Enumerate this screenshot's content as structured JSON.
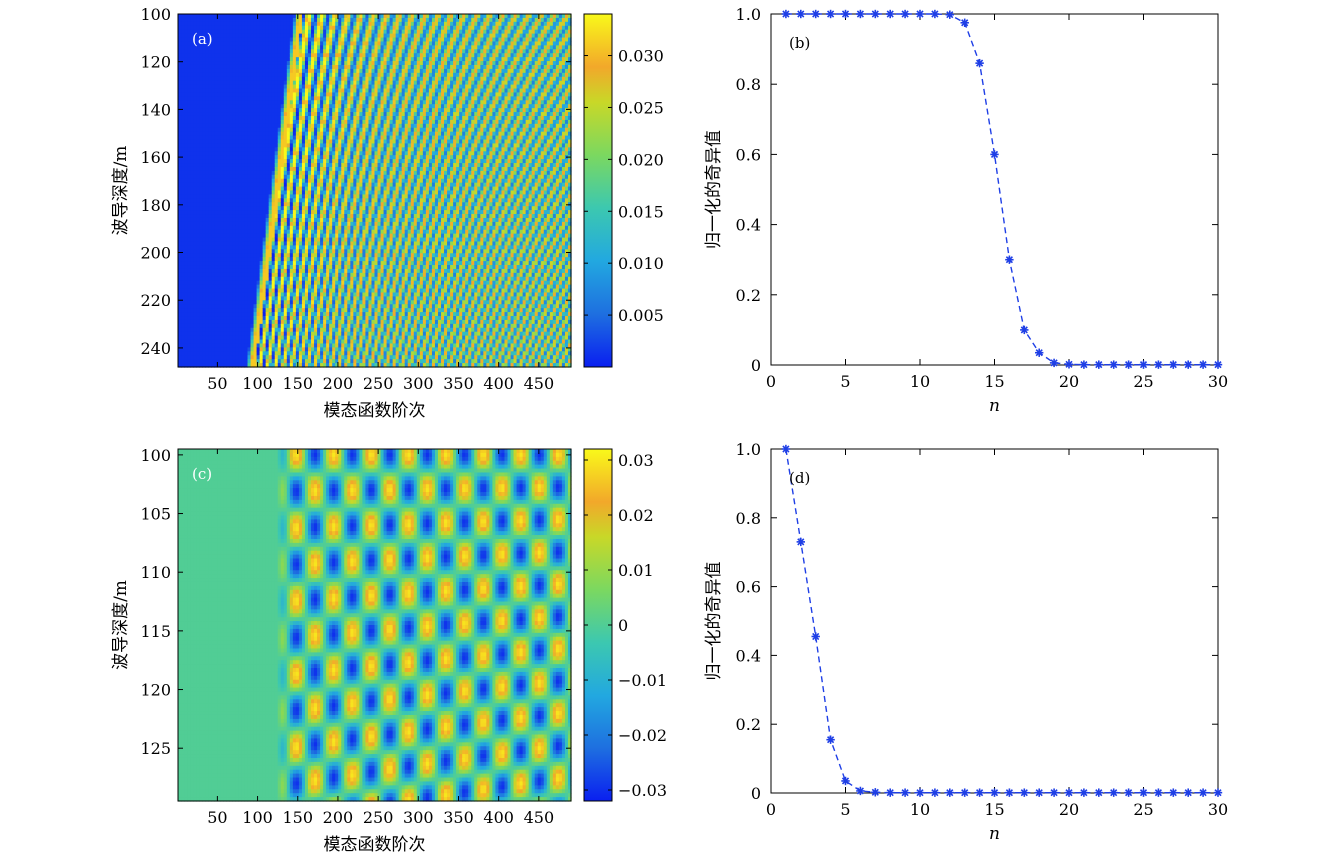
{
  "chart_data": [
    {
      "id": "a",
      "type": "heatmap",
      "panel_label": "(a)",
      "xlabel": "模态函数阶次",
      "ylabel": "波导深度/m",
      "xlim": [
        1,
        490
      ],
      "ylim": [
        100,
        248
      ],
      "xticks": [
        50,
        100,
        150,
        200,
        250,
        300,
        350,
        400,
        450
      ],
      "yticks": [
        100,
        120,
        140,
        160,
        180,
        200,
        220,
        240
      ],
      "colorbar": {
        "min": 0,
        "max": 0.034,
        "ticks": [
          0.005,
          0.01,
          0.015,
          0.02,
          0.025,
          0.03
        ],
        "tick_labels": [
          "0.005",
          "0.010",
          "0.015",
          "0.020",
          "0.025",
          "0.030"
        ]
      }
    },
    {
      "id": "b",
      "type": "line",
      "panel_label": "(b)",
      "xlabel": "n",
      "ylabel": "归一化的奇异值",
      "xlim": [
        0,
        30
      ],
      "ylim": [
        0,
        1.0
      ],
      "xticks": [
        0,
        5,
        10,
        15,
        20,
        25,
        30
      ],
      "yticks": [
        0,
        0.2,
        0.4,
        0.6,
        0.8,
        1.0
      ],
      "ytick_labels": [
        "0",
        "0.2",
        "0.4",
        "0.6",
        "0.8",
        "1.0"
      ],
      "series": [
        {
          "name": "normalized singular values",
          "x": [
            1,
            2,
            3,
            4,
            5,
            6,
            7,
            8,
            9,
            10,
            11,
            12,
            13,
            14,
            15,
            16,
            17,
            18,
            19,
            20,
            21,
            22,
            23,
            24,
            25,
            26,
            27,
            28,
            29,
            30
          ],
          "values": [
            1,
            1,
            1,
            1,
            1,
            1,
            1,
            1,
            1,
            1,
            1,
            0.998,
            0.975,
            0.86,
            0.6,
            0.3,
            0.1,
            0.035,
            0.006,
            0.002,
            0.001,
            0.001,
            0.001,
            0.001,
            0.001,
            0.001,
            0.001,
            0.001,
            0.001,
            0.001
          ]
        }
      ]
    },
    {
      "id": "c",
      "type": "heatmap",
      "panel_label": "(c)",
      "xlabel": "模态函数阶次",
      "ylabel": "波导深度/m",
      "xlim": [
        1,
        490
      ],
      "ylim": [
        99.5,
        129.5
      ],
      "xticks": [
        50,
        100,
        150,
        200,
        250,
        300,
        350,
        400,
        450
      ],
      "yticks": [
        100,
        105,
        110,
        115,
        120,
        125
      ],
      "colorbar": {
        "min": -0.032,
        "max": 0.032,
        "ticks": [
          -0.03,
          -0.02,
          -0.01,
          0,
          0.01,
          0.02,
          0.03
        ],
        "tick_labels": [
          "−0.03",
          "−0.02",
          "−0.01",
          "0",
          "0.01",
          "0.02",
          "0.03"
        ]
      }
    },
    {
      "id": "d",
      "type": "line",
      "panel_label": "(d)",
      "xlabel": "n",
      "ylabel": "归一化的奇异值",
      "xlim": [
        0,
        30
      ],
      "ylim": [
        0,
        1.0
      ],
      "xticks": [
        0,
        5,
        10,
        15,
        20,
        25,
        30
      ],
      "yticks": [
        0,
        0.2,
        0.4,
        0.6,
        0.8,
        1.0
      ],
      "ytick_labels": [
        "0",
        "0.2",
        "0.4",
        "0.6",
        "0.8",
        "1.0"
      ],
      "series": [
        {
          "name": "normalized singular values",
          "x": [
            1,
            2,
            3,
            4,
            5,
            6,
            7,
            8,
            9,
            10,
            11,
            12,
            13,
            14,
            15,
            16,
            17,
            18,
            19,
            20,
            21,
            22,
            23,
            24,
            25,
            26,
            27,
            28,
            29,
            30
          ],
          "values": [
            1.0,
            0.73,
            0.455,
            0.155,
            0.035,
            0.006,
            0.002,
            0.001,
            0.001,
            0.001,
            0.001,
            0.001,
            0.001,
            0.001,
            0.001,
            0.001,
            0.001,
            0.001,
            0.001,
            0.001,
            0.001,
            0.001,
            0.001,
            0.001,
            0.001,
            0.001,
            0.001,
            0.001,
            0.001,
            0.001
          ]
        }
      ]
    }
  ],
  "colors": {
    "line": "#1f3fe6",
    "axis": "#000000"
  }
}
